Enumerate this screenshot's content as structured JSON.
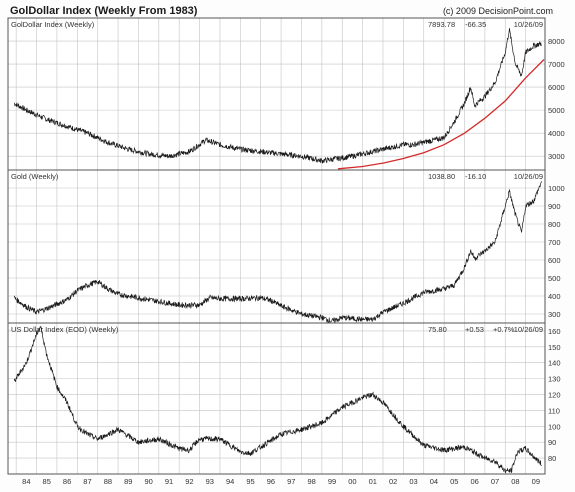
{
  "title": "GolDollar Index (Weekly From 1983)",
  "copyright": "(c) 2009 DecisionPoint.com",
  "x_ticks": [
    "84",
    "85",
    "86",
    "87",
    "88",
    "89",
    "90",
    "91",
    "92",
    "93",
    "94",
    "95",
    "96",
    "97",
    "98",
    "99",
    "00",
    "01",
    "02",
    "03",
    "04",
    "05",
    "06",
    "07",
    "08",
    "09"
  ],
  "colors": {
    "price": "#1a1a1a",
    "grid": "#c4c4c4",
    "border": "#555555",
    "curve": "#d42a2a",
    "text": "#333333"
  },
  "chart_data": [
    {
      "type": "line",
      "title": "GolDollar Index (Weekly)",
      "readout": {
        "value": "7893.78",
        "change": "-66.35",
        "date": "10/26/09"
      },
      "ylim": [
        2400,
        9000
      ],
      "y_ticks": [
        "8000",
        "7000",
        "6000",
        "5000",
        "4000",
        "3000"
      ],
      "series": [
        {
          "x": [
            1983.9,
            1984.5,
            1985.5,
            1986.5,
            1987.5,
            1988.5,
            1989.5,
            1990.5,
            1991.5,
            1992.5,
            1993.3,
            1994.0,
            1995.0,
            1996.0,
            1997.0,
            1998.0,
            1999.0,
            1999.8,
            2000.5,
            2001.0,
            2001.5,
            2002.0,
            2002.5,
            2003.0,
            2003.5,
            2004.0,
            2004.5,
            2005.0,
            2005.5,
            2006.0,
            2006.3,
            2006.5,
            2007.0,
            2007.5,
            2008.0,
            2008.2,
            2008.5,
            2008.8,
            2009.0,
            2009.4,
            2009.8
          ],
          "values": [
            5300,
            5000,
            4600,
            4300,
            4000,
            3600,
            3300,
            3100,
            3000,
            3200,
            3700,
            3500,
            3300,
            3200,
            3100,
            3000,
            2800,
            2900,
            3000,
            3100,
            3200,
            3300,
            3400,
            3500,
            3500,
            3600,
            3700,
            3800,
            4500,
            5300,
            6000,
            5200,
            5600,
            6200,
            7500,
            8500,
            7000,
            6500,
            7500,
            7800,
            7900
          ]
        }
      ],
      "trendline": {
        "x": [
          1999.8,
          2001,
          2002,
          2003,
          2004,
          2005,
          2006,
          2007,
          2008,
          2009,
          2009.9
        ],
        "values": [
          2450,
          2550,
          2700,
          2900,
          3150,
          3500,
          4000,
          4650,
          5400,
          6400,
          7200
        ]
      }
    },
    {
      "type": "line",
      "title": "Gold (Weekly)",
      "readout": {
        "value": "1038.80",
        "change": "-16.10",
        "date": "10/26/09"
      },
      "ylim": [
        250,
        1100
      ],
      "y_ticks": [
        "1000",
        "900",
        "800",
        "700",
        "600",
        "500",
        "400",
        "300"
      ],
      "series": [
        {
          "x": [
            1983.9,
            1984.5,
            1985.0,
            1985.5,
            1986.5,
            1987.0,
            1987.5,
            1988.0,
            1988.5,
            1989.0,
            1990.0,
            1991.0,
            1992.0,
            1993.0,
            1993.5,
            1994.0,
            1995.0,
            1996.0,
            1996.5,
            1997.0,
            1998.0,
            1999.0,
            1999.5,
            2000.0,
            2001.0,
            2001.5,
            2002.0,
            2003.0,
            2004.0,
            2005.0,
            2005.5,
            2006.0,
            2006.3,
            2006.5,
            2007.0,
            2007.5,
            2008.0,
            2008.2,
            2008.5,
            2008.8,
            2009.0,
            2009.4,
            2009.8
          ],
          "values": [
            390,
            340,
            310,
            330,
            380,
            430,
            460,
            480,
            440,
            410,
            390,
            370,
            350,
            350,
            390,
            385,
            385,
            390,
            375,
            345,
            300,
            280,
            260,
            280,
            270,
            270,
            310,
            360,
            420,
            440,
            460,
            560,
            650,
            610,
            650,
            700,
            900,
            980,
            850,
            750,
            900,
            930,
            1040
          ]
        }
      ]
    },
    {
      "type": "line",
      "title": "US Dollar Index (EOD) (Weekly)",
      "readout": {
        "value": "75.80",
        "change": "+0.53",
        "pct": "+0.7%",
        "date": "10/26/09"
      },
      "ylim": [
        70,
        165
      ],
      "y_ticks": [
        "160",
        "150",
        "140",
        "130",
        "120",
        "110",
        "100",
        "90",
        "80"
      ],
      "series": [
        {
          "x": [
            1983.9,
            1984.5,
            1985.0,
            1985.2,
            1985.5,
            1986.0,
            1986.5,
            1987.0,
            1987.5,
            1988.0,
            1989.0,
            1990.0,
            1991.0,
            1992.0,
            1992.5,
            1993.0,
            1994.0,
            1995.0,
            1995.5,
            1996.0,
            1997.0,
            1998.0,
            1999.0,
            2000.0,
            2001.0,
            2001.5,
            2002.0,
            2003.0,
            2004.0,
            2005.0,
            2006.0,
            2007.0,
            2007.5,
            2008.0,
            2008.3,
            2008.6,
            2009.0,
            2009.3,
            2009.8
          ],
          "values": [
            128,
            140,
            158,
            163,
            145,
            125,
            115,
            100,
            95,
            92,
            98,
            90,
            92,
            86,
            85,
            92,
            92,
            84,
            83,
            87,
            95,
            98,
            102,
            112,
            118,
            120,
            115,
            100,
            88,
            85,
            87,
            80,
            78,
            72,
            72,
            84,
            86,
            82,
            76
          ]
        }
      ]
    }
  ]
}
